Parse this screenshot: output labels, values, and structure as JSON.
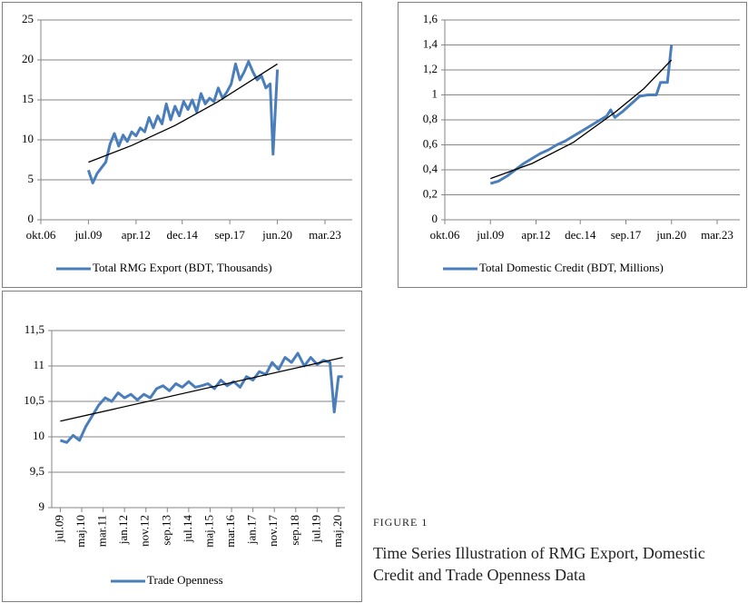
{
  "chart_data": [
    {
      "type": "line",
      "series": [
        {
          "name": "Total RMG Export (BDT, Thousands)",
          "color": "#4a7ebb",
          "x": [
            "2009-07",
            "2009-10",
            "2010-01",
            "2010-04",
            "2010-07",
            "2010-10",
            "2011-01",
            "2011-04",
            "2011-07",
            "2011-10",
            "2012-01",
            "2012-04",
            "2012-07",
            "2012-10",
            "2013-01",
            "2013-04",
            "2013-07",
            "2013-10",
            "2014-01",
            "2014-04",
            "2014-07",
            "2014-10",
            "2015-01",
            "2015-04",
            "2015-07",
            "2015-10",
            "2016-01",
            "2016-04",
            "2016-07",
            "2016-10",
            "2017-01",
            "2017-04",
            "2017-07",
            "2017-10",
            "2018-01",
            "2018-04",
            "2018-07",
            "2018-10",
            "2019-01",
            "2019-04",
            "2019-07",
            "2019-10",
            "2020-01",
            "2020-03",
            "2020-06"
          ],
          "values": [
            6.2,
            4.6,
            5.8,
            6.5,
            7.2,
            9.5,
            10.8,
            9.2,
            10.6,
            9.8,
            11.0,
            10.5,
            11.5,
            11.0,
            12.8,
            11.5,
            13.0,
            12.0,
            14.5,
            12.5,
            14.2,
            13.0,
            14.8,
            13.8,
            15.0,
            13.5,
            15.8,
            14.5,
            15.2,
            14.8,
            16.5,
            15.2,
            16.0,
            17.0,
            19.5,
            17.5,
            18.5,
            19.8,
            18.5,
            17.5,
            18.0,
            16.5,
            17.0,
            8.2,
            18.8
          ]
        }
      ],
      "trend": {
        "color": "#000000",
        "x": [
          "2009-07",
          "2012-01",
          "2014-07",
          "2017-01",
          "2020-06"
        ],
        "values": [
          7.2,
          9.3,
          11.8,
          14.8,
          19.5
        ]
      },
      "xlim": [
        "2006-10",
        "2023-03"
      ],
      "xticks": [
        {
          "value": "2006-10",
          "label": "okt.06"
        },
        {
          "value": "2009-07",
          "label": "jul.09"
        },
        {
          "value": "2012-04",
          "label": "apr.12"
        },
        {
          "value": "2014-12",
          "label": "dec.14"
        },
        {
          "value": "2017-09",
          "label": "sep.17"
        },
        {
          "value": "2020-06",
          "label": "jun.20"
        },
        {
          "value": "2023-03",
          "label": "mar.23"
        }
      ],
      "ylim": [
        0,
        25
      ],
      "yticks": [
        0,
        5,
        10,
        15,
        20,
        25
      ],
      "grid": true,
      "legend": "bottom"
    },
    {
      "type": "line",
      "series": [
        {
          "name": "Total Domestic Credit (BDT, Millions)",
          "color": "#4a7ebb",
          "x": [
            "2009-07",
            "2010-01",
            "2010-07",
            "2011-01",
            "2011-07",
            "2012-01",
            "2012-07",
            "2013-01",
            "2013-07",
            "2014-01",
            "2014-07",
            "2015-01",
            "2015-07",
            "2016-01",
            "2016-07",
            "2016-10",
            "2017-01",
            "2017-07",
            "2018-01",
            "2018-07",
            "2019-01",
            "2019-07",
            "2019-10",
            "2020-03",
            "2020-06"
          ],
          "values": [
            0.29,
            0.31,
            0.35,
            0.4,
            0.45,
            0.49,
            0.53,
            0.56,
            0.6,
            0.63,
            0.67,
            0.71,
            0.75,
            0.79,
            0.83,
            0.88,
            0.82,
            0.87,
            0.93,
            0.99,
            1.0,
            1.0,
            1.1,
            1.1,
            1.4
          ]
        }
      ],
      "trend": {
        "color": "#000000",
        "x": [
          "2009-07",
          "2012-01",
          "2014-07",
          "2017-01",
          "2018-10",
          "2020-06"
        ],
        "values": [
          0.33,
          0.45,
          0.62,
          0.86,
          1.05,
          1.28
        ]
      },
      "xlim": [
        "2006-10",
        "2023-03"
      ],
      "xticks": [
        {
          "value": "2006-10",
          "label": "okt.06"
        },
        {
          "value": "2009-07",
          "label": "jul.09"
        },
        {
          "value": "2012-04",
          "label": "apr.12"
        },
        {
          "value": "2014-12",
          "label": "dec.14"
        },
        {
          "value": "2017-09",
          "label": "sep.17"
        },
        {
          "value": "2020-06",
          "label": "jun.20"
        },
        {
          "value": "2023-03",
          "label": "mar.23"
        }
      ],
      "ylim": [
        0,
        1.6
      ],
      "yticks": [
        0,
        {
          "value": 0.2,
          "label": "0,2"
        },
        {
          "value": 0.4,
          "label": "0,4"
        },
        {
          "value": 0.6,
          "label": "0,6"
        },
        {
          "value": 0.8,
          "label": "0,8"
        },
        1,
        {
          "value": 1.2,
          "label": "1,2"
        },
        {
          "value": 1.4,
          "label": "1,4"
        },
        {
          "value": 1.6,
          "label": "1,6"
        }
      ],
      "grid": true,
      "legend": "bottom"
    },
    {
      "type": "line",
      "series": [
        {
          "name": "Trade Openness",
          "color": "#4a7ebb",
          "x": [
            "2009-07",
            "2009-10",
            "2010-01",
            "2010-04",
            "2010-07",
            "2010-10",
            "2011-01",
            "2011-04",
            "2011-07",
            "2011-10",
            "2012-01",
            "2012-04",
            "2012-07",
            "2012-10",
            "2013-01",
            "2013-04",
            "2013-07",
            "2013-10",
            "2014-01",
            "2014-04",
            "2014-07",
            "2014-10",
            "2015-01",
            "2015-04",
            "2015-07",
            "2015-10",
            "2016-01",
            "2016-04",
            "2016-07",
            "2016-10",
            "2017-01",
            "2017-04",
            "2017-07",
            "2017-10",
            "2018-01",
            "2018-04",
            "2018-07",
            "2018-10",
            "2019-01",
            "2019-04",
            "2019-07",
            "2019-10",
            "2020-01",
            "2020-03",
            "2020-05",
            "2020-07"
          ],
          "values": [
            9.95,
            9.92,
            10.02,
            9.95,
            10.15,
            10.3,
            10.45,
            10.55,
            10.5,
            10.62,
            10.55,
            10.6,
            10.52,
            10.6,
            10.55,
            10.68,
            10.72,
            10.65,
            10.75,
            10.7,
            10.78,
            10.7,
            10.72,
            10.75,
            10.68,
            10.8,
            10.72,
            10.78,
            10.7,
            10.85,
            10.8,
            10.92,
            10.88,
            11.05,
            10.95,
            11.12,
            11.05,
            11.18,
            11.0,
            11.12,
            11.02,
            11.08,
            11.05,
            10.35,
            10.85,
            10.85
          ]
        }
      ],
      "trend": {
        "color": "#000000",
        "x": [
          "2009-07",
          "2020-07"
        ],
        "values": [
          10.22,
          11.12
        ]
      },
      "xlim": [
        "2009-03",
        "2020-08"
      ],
      "xticks": [
        {
          "value": "2009-07",
          "label": "jul.09"
        },
        {
          "value": "2010-05",
          "label": "maj.10"
        },
        {
          "value": "2011-03",
          "label": "mar.11"
        },
        {
          "value": "2012-01",
          "label": "jan.12"
        },
        {
          "value": "2012-11",
          "label": "nov.12"
        },
        {
          "value": "2013-09",
          "label": "sep.13"
        },
        {
          "value": "2014-07",
          "label": "jul.14"
        },
        {
          "value": "2015-05",
          "label": "maj.15"
        },
        {
          "value": "2016-03",
          "label": "mar.16"
        },
        {
          "value": "2017-01",
          "label": "jan.17"
        },
        {
          "value": "2017-11",
          "label": "nov.17"
        },
        {
          "value": "2018-09",
          "label": "sep.18"
        },
        {
          "value": "2019-07",
          "label": "jul.19"
        },
        {
          "value": "2020-05",
          "label": "maj.20"
        }
      ],
      "xtick_rotation": -90,
      "ylim": [
        9,
        11.5
      ],
      "yticks": [
        9,
        {
          "value": 9.5,
          "label": "9,5"
        },
        10,
        {
          "value": 10.5,
          "label": "10,5"
        },
        11,
        {
          "value": 11.5,
          "label": "11,5"
        }
      ],
      "grid": true,
      "legend": "bottom"
    }
  ],
  "caption": {
    "label": "FIGURE 1",
    "text": "Time Series Illustration of RMG Export, Domestic Credit and Trade Openness Data"
  }
}
